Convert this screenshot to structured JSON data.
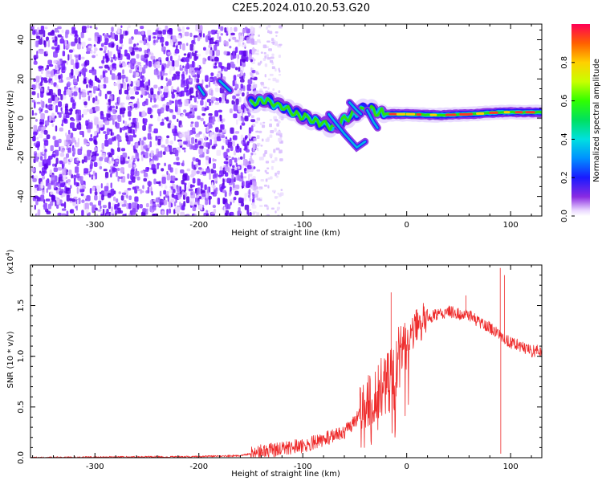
{
  "title": "C2E5.2024.010.20.53.G20",
  "colors": {
    "snr_line": "#ee2a2a",
    "axes": "#000000",
    "background": "#ffffff"
  },
  "chart_data": [
    {
      "type": "heatmap",
      "xlabel": "Height of straight line (km)",
      "ylabel": "Frequency (Hz)",
      "xlim": [
        -362,
        130
      ],
      "ylim": [
        -50,
        48
      ],
      "xticks": [
        -300,
        -200,
        -100,
        0,
        100
      ],
      "yticks": [
        -40,
        -20,
        0,
        20,
        40
      ],
      "colorbar": {
        "label": "Normalized spectral amplitude",
        "range": [
          0.0,
          1.0
        ],
        "ticks": [
          "0.0",
          "0.2",
          "0.4",
          "0.6",
          "0.8"
        ],
        "colormap": "rainbow"
      },
      "features": {
        "noise_region_x": [
          -362,
          -148
        ],
        "tone_path": [
          {
            "x": -150,
            "f": 8
          },
          {
            "x": -135,
            "f": 9
          },
          {
            "x": -120,
            "f": 6
          },
          {
            "x": -105,
            "f": 2
          },
          {
            "x": -90,
            "f": -1
          },
          {
            "x": -80,
            "f": -3
          },
          {
            "x": -70,
            "f": -5
          },
          {
            "x": -55,
            "f": 1
          },
          {
            "x": -40,
            "f": 5
          },
          {
            "x": -20,
            "f": 2
          },
          {
            "x": 0,
            "f": 2
          },
          {
            "x": 30,
            "f": 1.5
          },
          {
            "x": 60,
            "f": 2
          },
          {
            "x": 90,
            "f": 3
          },
          {
            "x": 130,
            "f": 3
          }
        ]
      }
    },
    {
      "type": "line",
      "xlabel": "Height of straight line (km)",
      "ylabel": "SNR (10 * v/v)",
      "multiplier": "(x10",
      "multiplier_exp": "4",
      "multiplier_close": ")",
      "xlim": [
        -362,
        130
      ],
      "ylim": [
        0,
        1.9
      ],
      "xticks": [
        -300,
        -200,
        -100,
        0,
        100
      ],
      "yticks": [
        "0.0",
        "0.5",
        "1.0",
        "1.5"
      ],
      "envelope": [
        {
          "x": -362,
          "y": 0.0
        },
        {
          "x": -200,
          "y": 0.01
        },
        {
          "x": -160,
          "y": 0.02
        },
        {
          "x": -140,
          "y": 0.06
        },
        {
          "x": -120,
          "y": 0.09
        },
        {
          "x": -100,
          "y": 0.12
        },
        {
          "x": -80,
          "y": 0.18
        },
        {
          "x": -60,
          "y": 0.25
        },
        {
          "x": -50,
          "y": 0.35
        },
        {
          "x": -40,
          "y": 0.5
        },
        {
          "x": -30,
          "y": 0.65
        },
        {
          "x": -20,
          "y": 0.8
        },
        {
          "x": -10,
          "y": 1.0
        },
        {
          "x": 0,
          "y": 1.15
        },
        {
          "x": 10,
          "y": 1.3
        },
        {
          "x": 20,
          "y": 1.38
        },
        {
          "x": 40,
          "y": 1.44
        },
        {
          "x": 60,
          "y": 1.4
        },
        {
          "x": 70,
          "y": 1.34
        },
        {
          "x": 80,
          "y": 1.28
        },
        {
          "x": 90,
          "y": 1.2
        },
        {
          "x": 100,
          "y": 1.13
        },
        {
          "x": 110,
          "y": 1.1
        },
        {
          "x": 120,
          "y": 1.05
        },
        {
          "x": 130,
          "y": 1.06
        }
      ],
      "spikes": [
        {
          "x": -15,
          "y": 1.63
        },
        {
          "x": 57,
          "y": 1.6
        },
        {
          "x": 90,
          "y": 1.87
        },
        {
          "x": 94,
          "y": 1.8
        },
        {
          "x": 90.5,
          "y": 0.04
        }
      ]
    }
  ]
}
